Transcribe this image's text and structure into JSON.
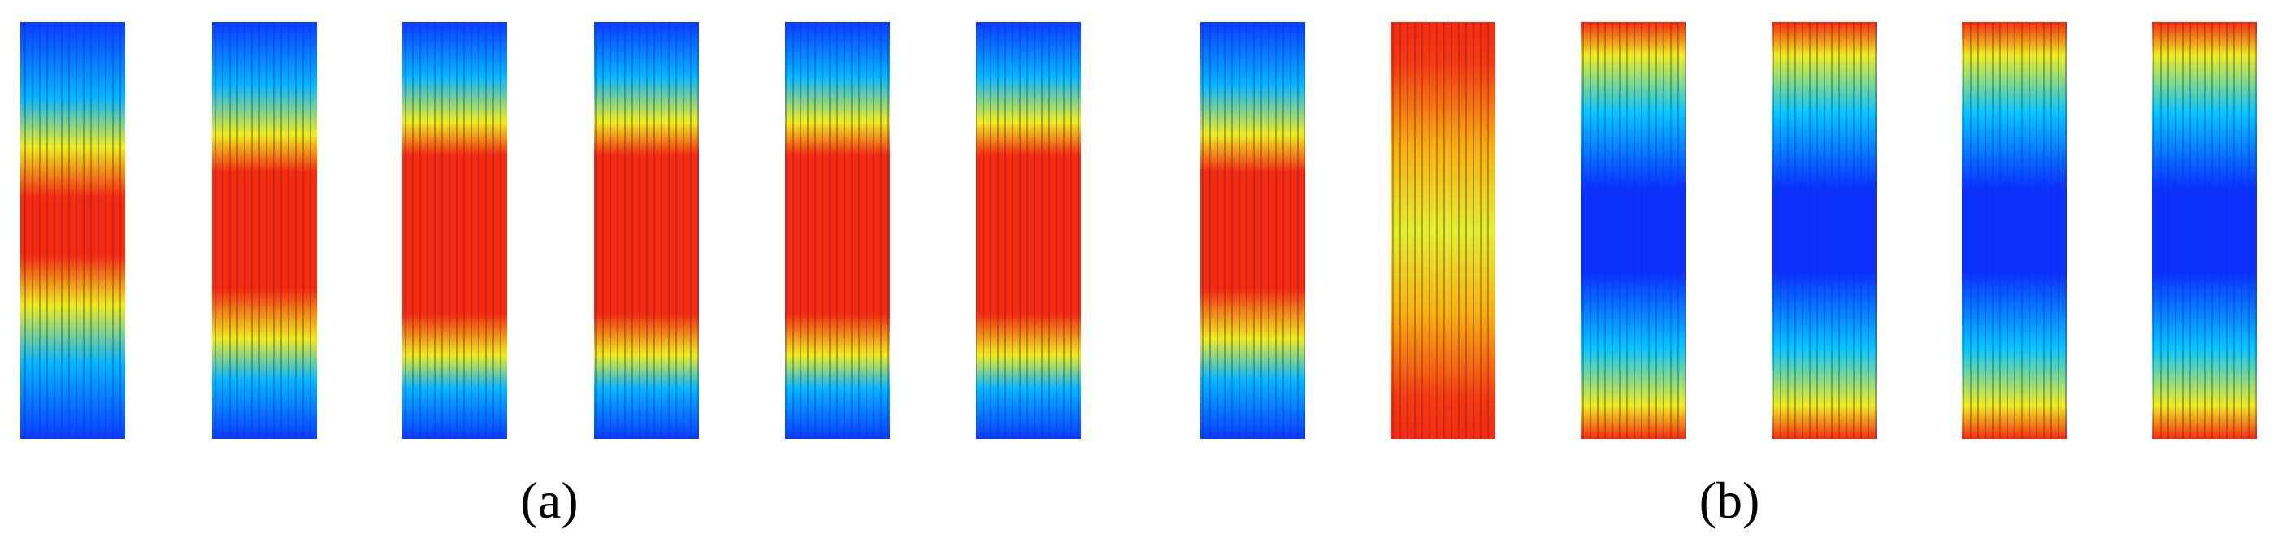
{
  "captions": [
    "(a)",
    "(b)"
  ]
}
